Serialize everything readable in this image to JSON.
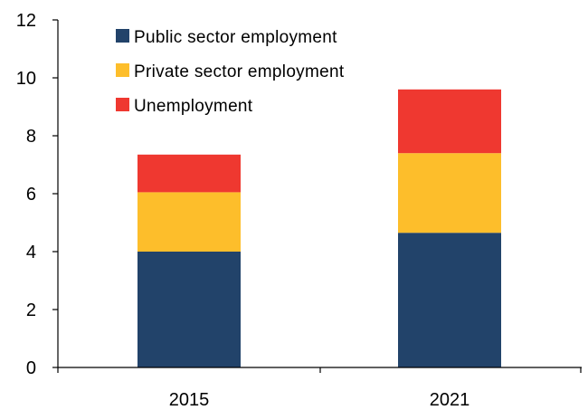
{
  "chart_data": {
    "type": "bar",
    "stacked": true,
    "categories": [
      "2015",
      "2021"
    ],
    "series": [
      {
        "name": "Public sector employment",
        "color": "#22436a",
        "values": [
          4.0,
          4.65
        ]
      },
      {
        "name": "Private sector employment",
        "color": "#fdbe2b",
        "values": [
          2.05,
          2.75
        ]
      },
      {
        "name": "Unemployment",
        "color": "#ef3830",
        "values": [
          1.3,
          2.2
        ]
      }
    ],
    "title": "",
    "xlabel": "",
    "ylabel": "",
    "ylim": [
      0,
      12
    ],
    "yticks": [
      "0",
      "2",
      "4",
      "6",
      "8",
      "10",
      "12"
    ],
    "grid": false,
    "legend_position": "top-left"
  }
}
